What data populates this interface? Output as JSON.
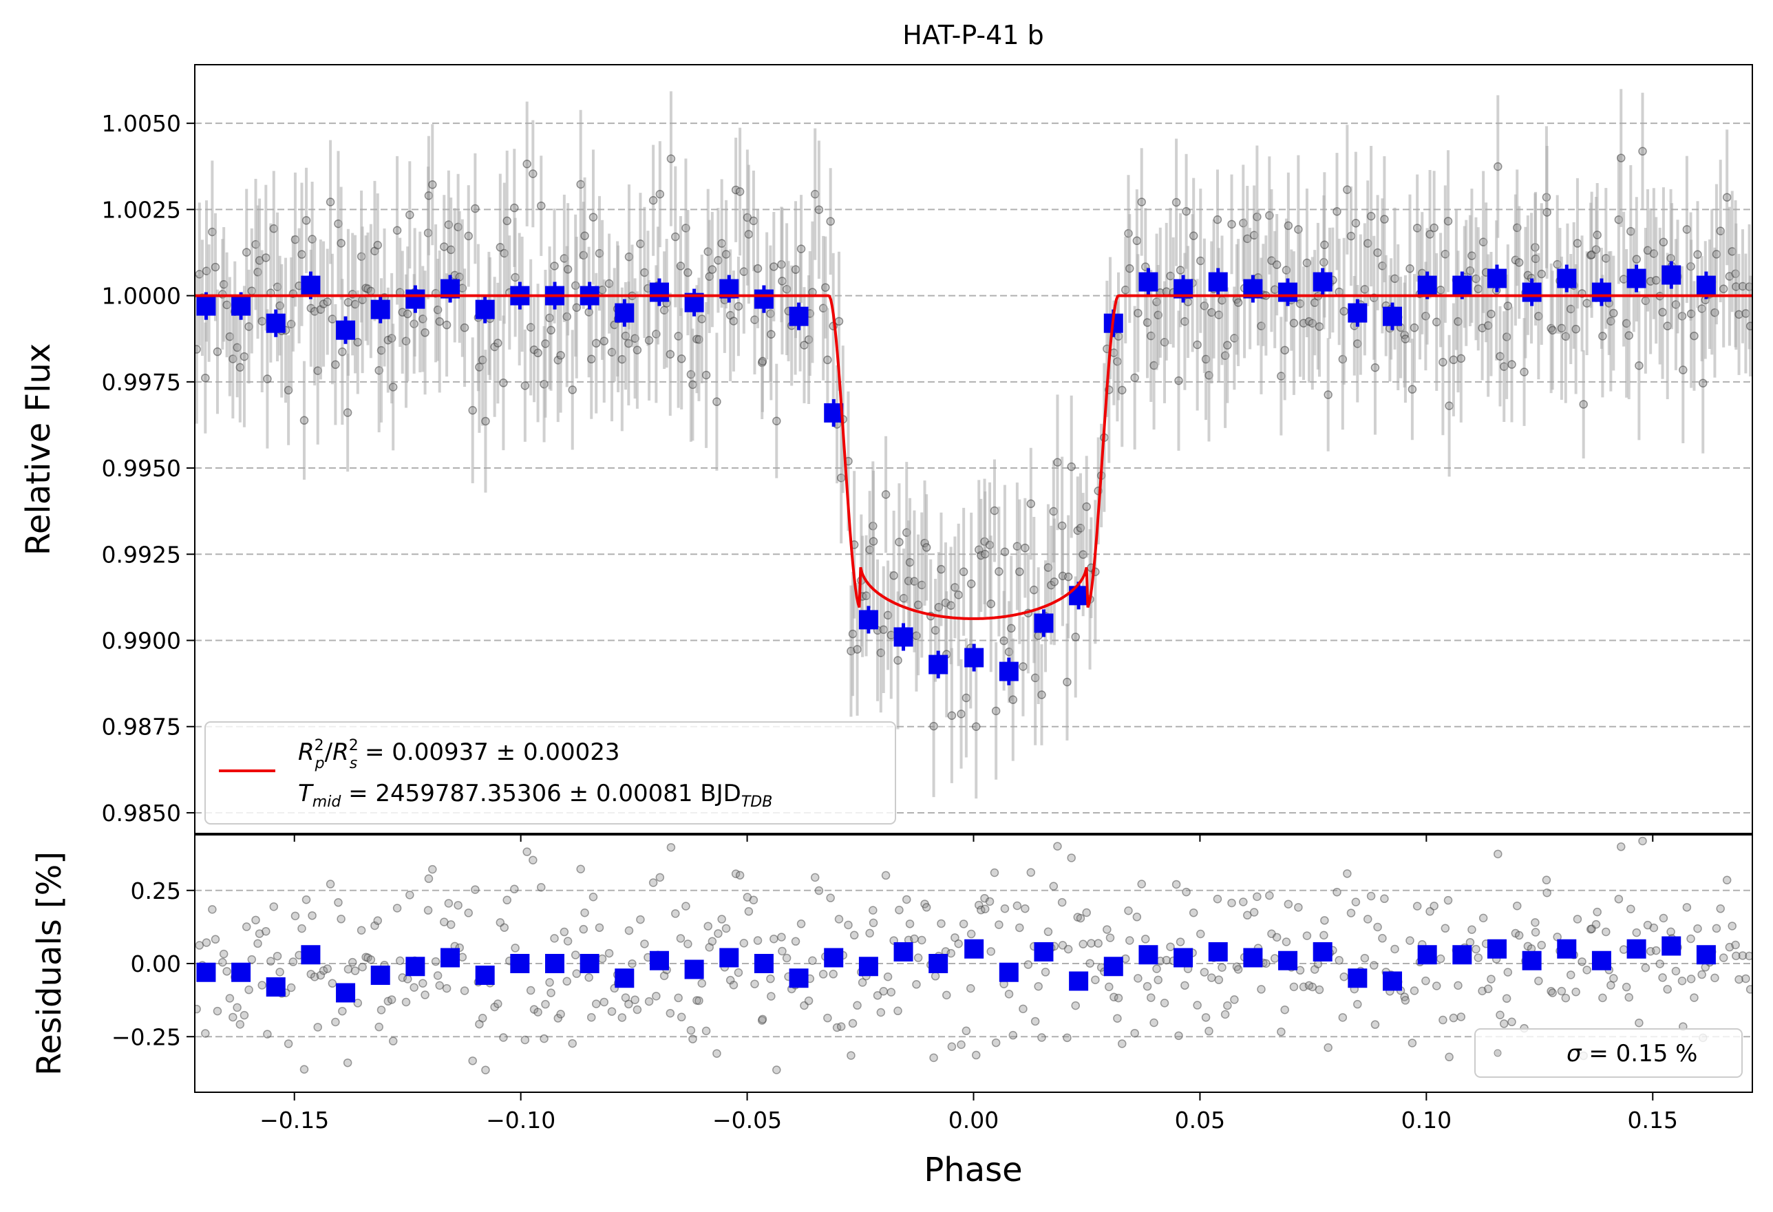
{
  "chart_data": [
    {
      "type": "scatter",
      "panel": "main",
      "title": "HAT-P-41 b",
      "xlabel": "",
      "ylabel": "Relative Flux",
      "xlim": [
        -0.172,
        0.172
      ],
      "ylim": [
        0.9844,
        1.0067
      ],
      "xticks": [
        -0.15,
        -0.1,
        -0.05,
        0.0,
        0.05,
        0.1,
        0.15
      ],
      "xtick_labels": [
        "−0.15",
        "−0.10",
        "−0.05",
        "0.00",
        "0.05",
        "0.10",
        "0.15"
      ],
      "yticks": [
        0.985,
        0.9875,
        0.99,
        0.9925,
        0.995,
        0.9975,
        1.0,
        1.0025,
        1.005
      ],
      "ytick_labels": [
        "0.9850",
        "0.9875",
        "0.9900",
        "0.9925",
        "0.9950",
        "0.9975",
        "1.0000",
        "1.0025",
        "1.0050"
      ],
      "grid": "y-dashed",
      "model": {
        "rp2_rs2": 0.00937,
        "t1": 0.032,
        "t2": 0.025,
        "depth_center": 0.00085,
        "color": "#ee0000"
      },
      "binned": {
        "color": "#0000ee",
        "x": [
          -0.1695,
          -0.1618,
          -0.1541,
          -0.1464,
          -0.1387,
          -0.131,
          -0.1233,
          -0.1156,
          -0.1079,
          -0.1002,
          -0.0925,
          -0.0848,
          -0.0771,
          -0.0694,
          -0.0617,
          -0.054,
          -0.0463,
          -0.0386,
          -0.0309,
          -0.0232,
          -0.0155,
          -0.0078,
          0.0001,
          0.0078,
          0.0155,
          0.0232,
          0.0309,
          0.0386,
          0.0463,
          0.054,
          0.0617,
          0.0694,
          0.0771,
          0.0848,
          0.0925,
          0.1002,
          0.1079,
          0.1156,
          0.1233,
          0.131,
          0.1387,
          0.1464,
          0.1541,
          0.1618
        ],
        "y": [
          0.9997,
          0.9997,
          0.9992,
          1.0003,
          0.999,
          0.9996,
          0.9999,
          1.0002,
          0.9996,
          1.0,
          1.0,
          1.0,
          0.9995,
          1.0001,
          0.9998,
          1.0002,
          0.9999,
          0.9994,
          0.9966,
          0.9906,
          0.9901,
          0.9893,
          0.9895,
          0.9891,
          0.9905,
          0.9913,
          0.9992,
          1.0004,
          1.0002,
          1.0004,
          1.0002,
          1.0001,
          1.0004,
          0.9995,
          0.9994,
          1.0003,
          1.0003,
          1.0005,
          1.0001,
          1.0005,
          1.0001,
          1.0005,
          1.0006,
          1.0003
        ],
        "yerr": 0.0004
      },
      "raw": {
        "color": "#555555",
        "n_points": 560,
        "x_range": [
          -0.172,
          0.172
        ],
        "scatter_sigma": 0.0015,
        "yerr": 0.0018
      },
      "legend": {
        "placement": "lower-left",
        "line1_main": "R",
        "line1_sub_p": "p",
        "line1_sup_2": "2",
        "line1_slash": "/",
        "line1_sub_s": "s",
        "line1_value": " = 0.00937 ± 0.00023",
        "line2_main": "T",
        "line2_sub": "mid",
        "line2_value": " = 2459787.35306 ± 0.00081 BJD",
        "line2_unit_sub": "TDB"
      }
    },
    {
      "type": "scatter",
      "panel": "residuals",
      "xlabel": "Phase",
      "ylabel": "Residuals [%]",
      "xlim": [
        -0.172,
        0.172
      ],
      "ylim": [
        -0.44,
        0.44
      ],
      "yticks": [
        -0.25,
        0.0,
        0.25
      ],
      "ytick_labels": [
        "−0.25",
        "0.00",
        "0.25"
      ],
      "grid": "y-dashed",
      "binned_y": [
        -0.03,
        -0.03,
        -0.08,
        0.03,
        -0.1,
        -0.04,
        -0.01,
        0.02,
        -0.04,
        0.0,
        0.0,
        0.0,
        -0.05,
        0.01,
        -0.02,
        0.02,
        0.0,
        -0.05,
        0.02,
        -0.01,
        0.04,
        0.0,
        0.05,
        -0.03,
        0.04,
        -0.06,
        -0.01,
        0.03,
        0.02,
        0.04,
        0.02,
        0.01,
        0.04,
        -0.05,
        -0.06,
        0.03,
        0.03,
        0.05,
        0.01,
        0.05,
        0.01,
        0.05,
        0.06,
        0.03
      ],
      "legend": {
        "placement": "lower-right",
        "sigma_symbol": "σ",
        "sigma_text": " = 0.15 %"
      }
    }
  ]
}
